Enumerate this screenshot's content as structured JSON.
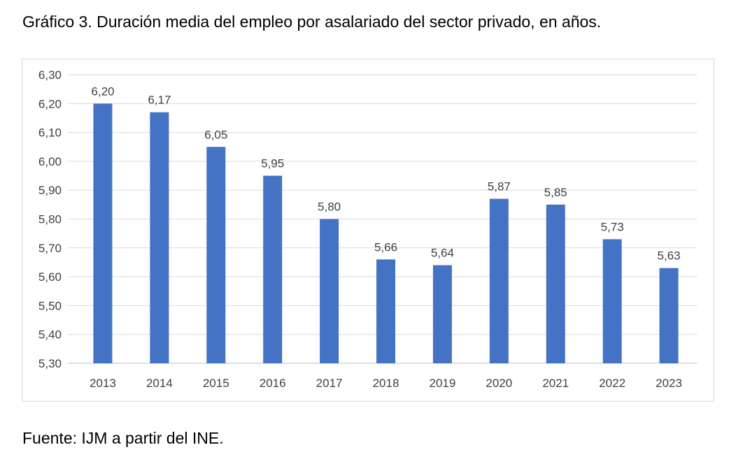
{
  "title": "Gráfico 3. Duración media del empleo por asalariado del sector privado, en años.",
  "source": "Fuente: IJM a partir del INE.",
  "chart_data": {
    "type": "bar",
    "categories": [
      "2013",
      "2014",
      "2015",
      "2016",
      "2017",
      "2018",
      "2019",
      "2020",
      "2021",
      "2022",
      "2023"
    ],
    "values": [
      6.2,
      6.17,
      6.05,
      5.95,
      5.8,
      5.66,
      5.64,
      5.87,
      5.85,
      5.73,
      5.63
    ],
    "data_labels": [
      "6,20",
      "6,17",
      "6,05",
      "5,95",
      "5,80",
      "5,66",
      "5,64",
      "5,87",
      "5,85",
      "5,73",
      "5,63"
    ],
    "ylim": [
      5.3,
      6.3
    ],
    "yticks": [
      "5,30",
      "5,40",
      "5,50",
      "5,60",
      "5,70",
      "5,80",
      "5,90",
      "6,00",
      "6,10",
      "6,20",
      "6,30"
    ],
    "grid": true,
    "bar_color": "#4472C4",
    "title": "",
    "xlabel": "",
    "ylabel": ""
  }
}
